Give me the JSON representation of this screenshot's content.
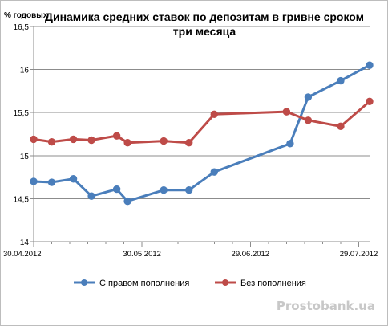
{
  "chart_data": {
    "type": "line",
    "title": "Динамика средних ставок по депозитам в гривне сроком три месяца",
    "title_lines": [
      "Динамика средних ставок по депозитам в гривне сроком",
      "три месяца"
    ],
    "ylabel": "% годовых",
    "xlabel": "",
    "ylim": [
      14,
      16.5
    ],
    "yticks": [
      14,
      14.5,
      15,
      15.5,
      16,
      16.5
    ],
    "ytick_labels": [
      "14",
      "14,5",
      "15",
      "15,5",
      "16",
      "16,5"
    ],
    "xlim": [
      "2012-04-30",
      "2012-08-01"
    ],
    "xticks": [
      "2012-04-30",
      "2012-05-30",
      "2012-06-29",
      "2012-07-29"
    ],
    "xtick_labels": [
      "30.04.2012",
      "30.05.2012",
      "29.06.2012",
      "29.07.2012"
    ],
    "grid": "horizontal",
    "legend_position": "bottom",
    "series": [
      {
        "name": "С правом пополнения",
        "color": "#4a7ebb",
        "points": [
          {
            "x": "2012-04-30",
            "y": 14.7
          },
          {
            "x": "2012-05-05",
            "y": 14.69
          },
          {
            "x": "2012-05-11",
            "y": 14.73
          },
          {
            "x": "2012-05-16",
            "y": 14.53
          },
          {
            "x": "2012-05-23",
            "y": 14.61
          },
          {
            "x": "2012-05-26",
            "y": 14.47
          },
          {
            "x": "2012-06-05",
            "y": 14.6
          },
          {
            "x": "2012-06-12",
            "y": 14.6
          },
          {
            "x": "2012-06-19",
            "y": 14.81
          },
          {
            "x": "2012-07-10",
            "y": 15.14
          },
          {
            "x": "2012-07-15",
            "y": 15.68
          },
          {
            "x": "2012-07-24",
            "y": 15.87
          },
          {
            "x": "2012-08-01",
            "y": 16.05
          }
        ]
      },
      {
        "name": "Без пополнения",
        "color": "#be4b48",
        "points": [
          {
            "x": "2012-04-30",
            "y": 15.19
          },
          {
            "x": "2012-05-05",
            "y": 15.16
          },
          {
            "x": "2012-05-11",
            "y": 15.19
          },
          {
            "x": "2012-05-16",
            "y": 15.18
          },
          {
            "x": "2012-05-23",
            "y": 15.23
          },
          {
            "x": "2012-05-26",
            "y": 15.15
          },
          {
            "x": "2012-06-05",
            "y": 15.17
          },
          {
            "x": "2012-06-12",
            "y": 15.15
          },
          {
            "x": "2012-06-19",
            "y": 15.48
          },
          {
            "x": "2012-07-09",
            "y": 15.51
          },
          {
            "x": "2012-07-15",
            "y": 15.41
          },
          {
            "x": "2012-07-24",
            "y": 15.34
          },
          {
            "x": "2012-08-01",
            "y": 15.63
          }
        ]
      }
    ]
  },
  "watermark": "Prostobank.ua"
}
